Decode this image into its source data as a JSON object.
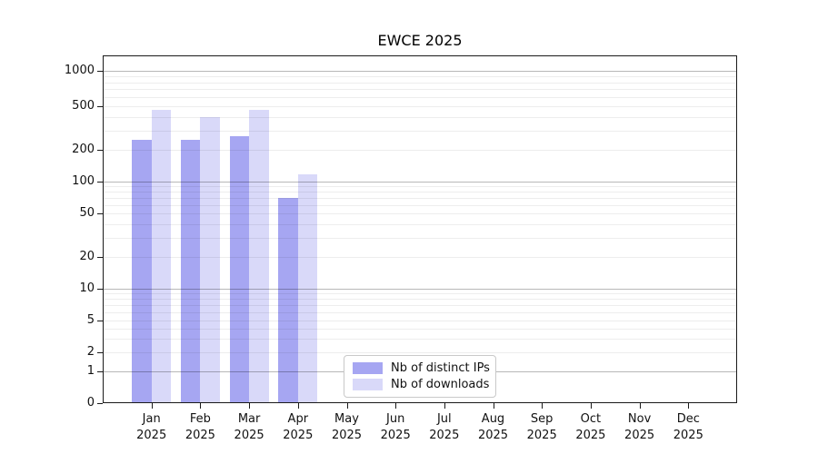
{
  "figure": {
    "title": "EWCE 2025"
  },
  "chart_data": {
    "type": "bar",
    "title": "EWCE 2025",
    "x_tick_months": [
      "Jan",
      "Feb",
      "Mar",
      "Apr",
      "May",
      "Jun",
      "Jul",
      "Aug",
      "Sep",
      "Oct",
      "Nov",
      "Dec"
    ],
    "x_tick_year": "2025",
    "categories": [
      "Jan 2025",
      "Feb 2025",
      "Mar 2025",
      "Apr 2025",
      "May 2025",
      "Jun 2025",
      "Jul 2025",
      "Aug 2025",
      "Sep 2025",
      "Oct 2025",
      "Nov 2025",
      "Dec 2025"
    ],
    "series": [
      {
        "name": "Nb of distinct IPs",
        "color": "#a6a6f2",
        "values": [
          246,
          246,
          266,
          70,
          0,
          0,
          0,
          0,
          0,
          0,
          0,
          0
        ]
      },
      {
        "name": "Nb of downloads",
        "color": "#d9d9f9",
        "values": [
          460,
          397,
          460,
          117,
          0,
          0,
          0,
          0,
          0,
          0,
          0,
          0
        ]
      }
    ],
    "y_ticks": [
      0,
      1,
      2,
      5,
      10,
      20,
      50,
      100,
      200,
      500,
      1000
    ],
    "y_scale": "log-like (symlog near zero)",
    "ylim": [
      0,
      1400
    ],
    "grid": "horizontal major and minor log gridlines, drawn over bars",
    "legend_position": "inside plot, bottom center"
  }
}
